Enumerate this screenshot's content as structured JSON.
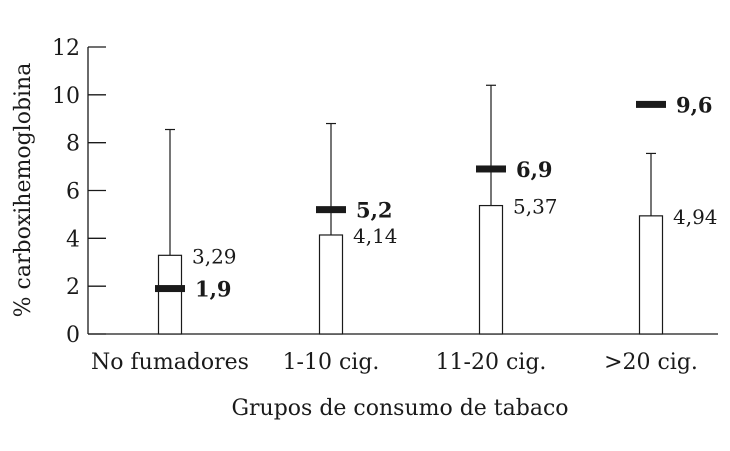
{
  "chart_data": {
    "type": "bar",
    "xlabel": "Grupos de consumo de tabaco",
    "ylabel": "% carboxihemoglobina",
    "ylim": [
      0,
      12
    ],
    "yticks": [
      "0",
      "2",
      "4",
      "6",
      "8",
      "10",
      "12"
    ],
    "grid": false,
    "categories": [
      "No fumadores",
      "1-10 cig.",
      "11-20 cig.",
      ">20 cig."
    ],
    "series": [
      {
        "kind": "box",
        "values": [
          3.29,
          4.14,
          5.37,
          4.94
        ],
        "labels": [
          "3,29",
          "4,14",
          "5,37",
          "4,94"
        ],
        "whisker_top": [
          8.55,
          8.8,
          10.4,
          7.55
        ]
      },
      {
        "kind": "mean-marker",
        "values": [
          1.9,
          5.2,
          6.9,
          9.6
        ],
        "labels": [
          "1,9",
          "5,2",
          "6,9",
          "9,6"
        ]
      }
    ]
  }
}
